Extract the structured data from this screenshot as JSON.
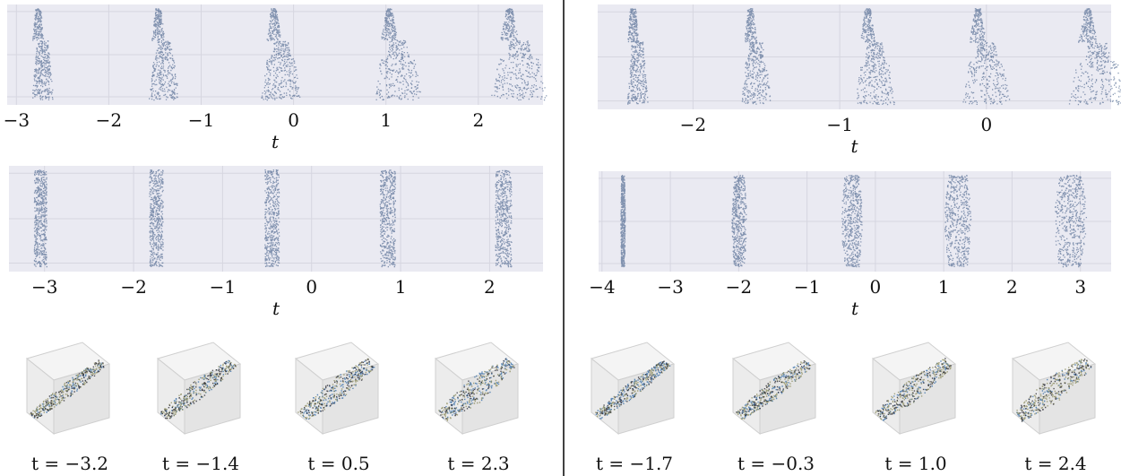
{
  "divider_color": "#000000",
  "colors": {
    "panel_bg": "#eaeaf2",
    "grid": "#d6d6e0",
    "points": "#2c4a7a"
  },
  "chart_data": [
    {
      "type": "scatter",
      "xlabel": "t",
      "xticks": [
        -3,
        -2,
        -1,
        0,
        1,
        2
      ],
      "xlim": [
        -3.1,
        2.7
      ],
      "snapshot_x": [
        -2.75,
        -1.45,
        -0.2,
        1.05,
        2.35
      ],
      "shape": "wedge"
    },
    {
      "type": "scatter",
      "xlabel": "t",
      "xticks": [
        -2,
        -1,
        0
      ],
      "xlim": [
        -2.65,
        0.85
      ],
      "snapshot_x": [
        -2.4,
        -1.6,
        -0.8,
        -0.05,
        0.7
      ],
      "shape": "wedge"
    },
    {
      "type": "scatter",
      "xlabel": "t",
      "xticks": [
        -3,
        -2,
        -1,
        0,
        1,
        2
      ],
      "xlim": [
        -3.4,
        2.6
      ],
      "snapshot_x": [
        -3.05,
        -1.75,
        -0.45,
        0.85,
        2.15
      ],
      "shape": "column"
    },
    {
      "type": "scatter",
      "xlabel": "t",
      "xticks": [
        -4,
        -3,
        -2,
        -1,
        0,
        1,
        2,
        3
      ],
      "xlim": [
        -4.05,
        3.45
      ],
      "snapshot_x": [
        -3.7,
        -2.0,
        -0.35,
        1.2,
        2.85
      ],
      "shape": "ellipse"
    }
  ],
  "snapshots_left": {
    "labels": [
      "t = −3.2",
      "t = −1.4",
      "t = 0.5",
      "t = 2.3"
    ],
    "t_values": [
      -3.2,
      -1.4,
      0.5,
      2.3
    ]
  },
  "snapshots_right": {
    "labels": [
      "t = −1.7",
      "t = −0.3",
      "t = 1.0",
      "t = 2.4"
    ],
    "t_values": [
      -1.7,
      -0.3,
      1.0,
      2.4
    ]
  }
}
